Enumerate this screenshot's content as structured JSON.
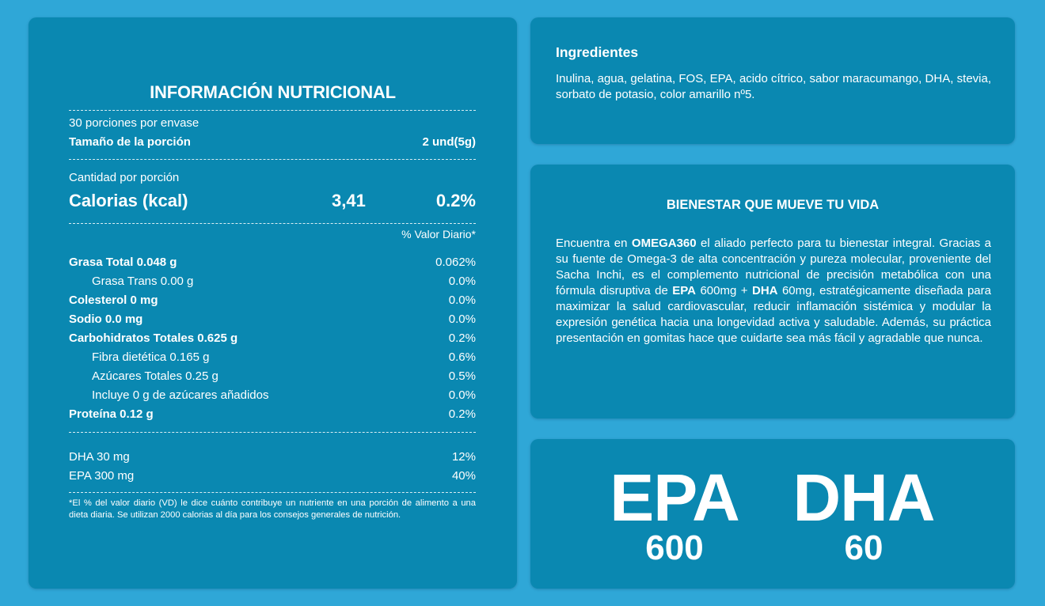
{
  "nutrition": {
    "title": "INFORMACIÓN NUTRICIONAL",
    "servings_per_container": "30 porciones por envase",
    "serving_size_label": "Tamaño de la porción",
    "serving_size_value": "2 und(5g)",
    "amount_per_serving": "Cantidad por porción",
    "calories": {
      "label": "Calorias (kcal)",
      "value": "3,41",
      "dv": "0.2%"
    },
    "dv_header": "% Valor Diario*",
    "nutrients": [
      {
        "label": "Grasa Total 0.048 g",
        "dv": "0.062%",
        "bold": true,
        "indent": false
      },
      {
        "label": "Grasa Trans 0.00 g",
        "dv": "0.0%",
        "bold": false,
        "indent": true
      },
      {
        "label": "Colesterol 0 mg",
        "dv": "0.0%",
        "bold": true,
        "indent": false
      },
      {
        "label": "Sodio 0.0 mg",
        "dv": "0.0%",
        "bold": true,
        "indent": false
      },
      {
        "label": "Carbohidratos Totales 0.625 g",
        "dv": "0.2%",
        "bold": true,
        "indent": false
      },
      {
        "label": "Fibra dietética 0.165 g",
        "dv": "0.6%",
        "bold": false,
        "indent": true
      },
      {
        "label": "Azúcares Totales 0.25 g",
        "dv": "0.5%",
        "bold": false,
        "indent": true
      },
      {
        "label": "Incluye 0 g de azúcares añadidos",
        "dv": "0.0%",
        "bold": false,
        "indent": true
      },
      {
        "label": "Proteína 0.12 g",
        "dv": "0.2%",
        "bold": true,
        "indent": false
      }
    ],
    "omega": [
      {
        "label": "DHA 30 mg",
        "dv": "12%"
      },
      {
        "label": "EPA 300 mg",
        "dv": "40%"
      }
    ],
    "footnote": "*El % del valor diario (VD) le dice cuánto contribuye un nutriente en una porción de alimento a una dieta diaria. Se utilizan 2000 calorias al día para los consejos generales de nutrición."
  },
  "ingredients": {
    "title": "Ingredientes",
    "text": "Inulina, agua, gelatina, FOS, EPA, acido cítrico, sabor maracumango, DHA, stevia, sorbato de potasio, color amarillo nº5."
  },
  "bienestar": {
    "title": "BIENESTAR QUE MUEVE TU VIDA",
    "segments": [
      {
        "text": "Encuentra en ",
        "bold": false
      },
      {
        "text": "OMEGA360",
        "bold": true
      },
      {
        "text": " el aliado perfecto para tu bienestar integral. Gracias a su fuente de Omega-3 de alta concentración y pureza molecular, proveniente del Sacha Inchi, es el complemento nutricional de precisión metabólica con una fórmula disruptiva de ",
        "bold": false
      },
      {
        "text": "EPA",
        "bold": true
      },
      {
        "text": " 600mg + ",
        "bold": false
      },
      {
        "text": "DHA",
        "bold": true
      },
      {
        "text": " 60mg, estratégicamente diseñada para maximizar la salud cardiovascular, reducir inflamación sistémica y modular la expresión genética hacia una longevidad activa y saludable. Además, su práctica presentación en gomitas hace que cuidarte sea más fácil y agradable que nunca.",
        "bold": false
      }
    ]
  },
  "omega_badge": {
    "epa": {
      "label": "EPA",
      "value": "600"
    },
    "dha": {
      "label": "DHA",
      "value": "60"
    }
  },
  "colors": {
    "background": "#2fa7d7",
    "panel": "#0a88b1",
    "text": "#ffffff"
  }
}
